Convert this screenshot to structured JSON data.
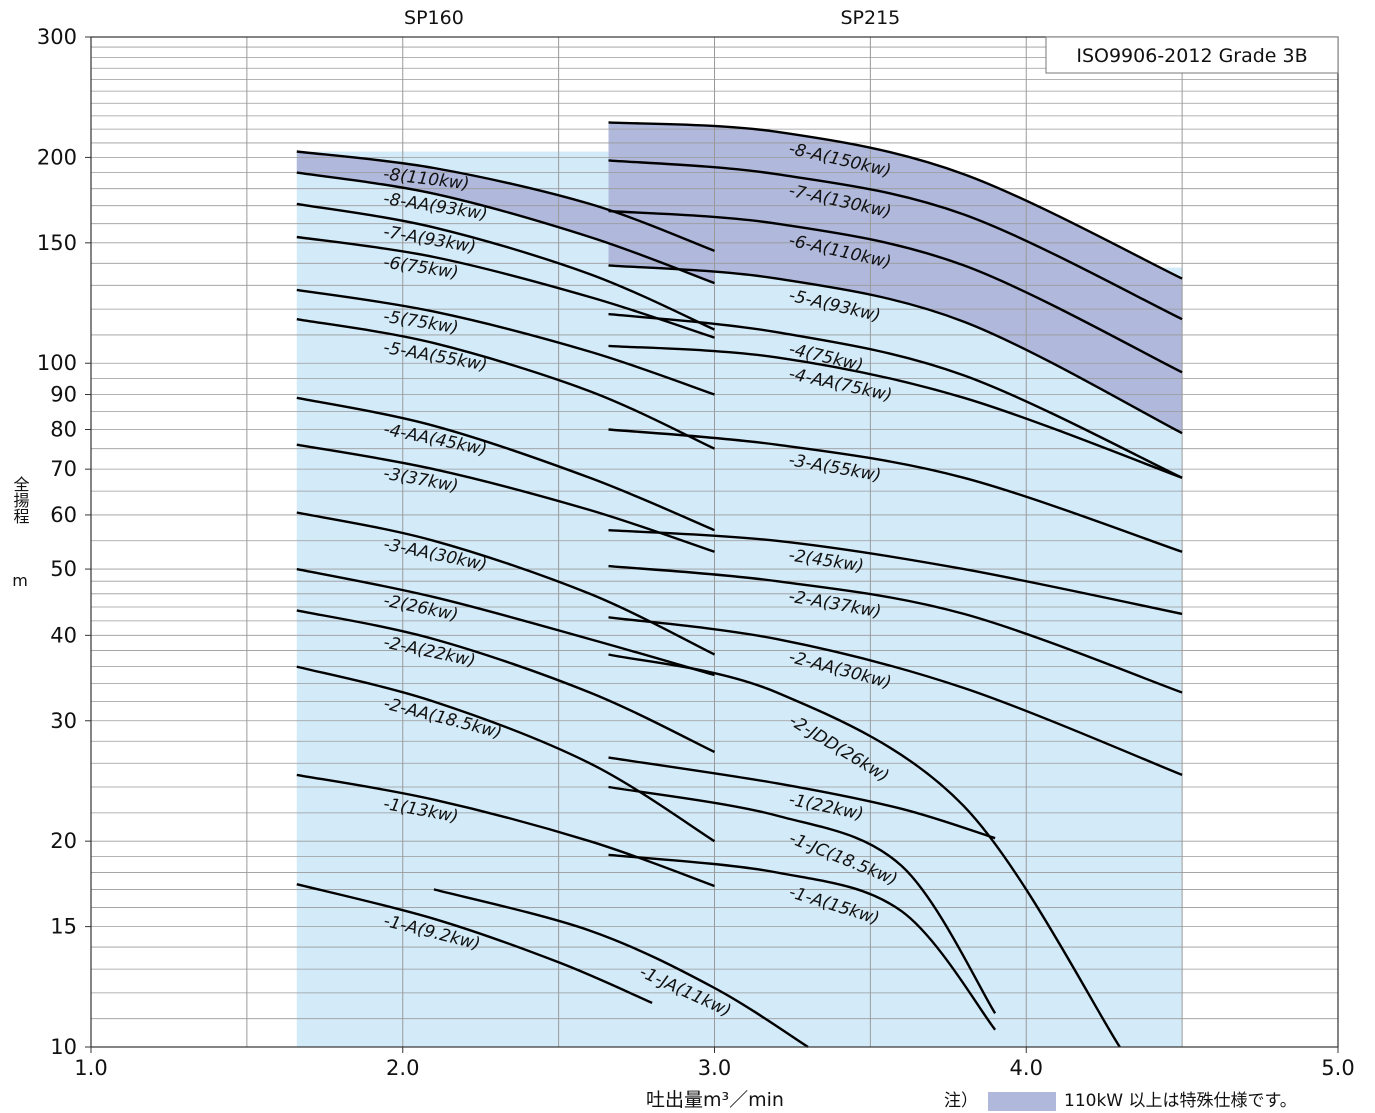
{
  "chart_data": {
    "type": "line",
    "standard_label": "ISO9906-2012 Grade 3B",
    "xlabel": "吐出量m³／min",
    "ylabel": "全揚程",
    "yunit": "m",
    "xlim": [
      1.0,
      5.0
    ],
    "ylim": [
      10,
      300
    ],
    "yscale": "log",
    "xticks": [
      "1.0",
      "2.0",
      "3.0",
      "4.0",
      "5.0"
    ],
    "yticks": [
      {
        "v": 10,
        "t": "10"
      },
      {
        "v": 15,
        "t": "15"
      },
      {
        "v": 20,
        "t": "20"
      },
      {
        "v": 30,
        "t": "30"
      },
      {
        "v": 40,
        "t": "40"
      },
      {
        "v": 50,
        "t": "50"
      },
      {
        "v": 60,
        "t": "60"
      },
      {
        "v": 70,
        "t": "70"
      },
      {
        "v": 80,
        "t": "80"
      },
      {
        "v": 90,
        "t": "90"
      },
      {
        "v": 100,
        "t": "100"
      },
      {
        "v": 150,
        "t": "150"
      },
      {
        "v": 200,
        "t": "200"
      },
      {
        "v": 300,
        "t": "300"
      }
    ],
    "groups": [
      {
        "name": "SP160",
        "xmid": 2.1
      },
      {
        "name": "SP215",
        "xmid": 3.5
      }
    ],
    "note_prefix": "注）",
    "note_text": "110kW 以上は特殊仕様です。",
    "colors": {
      "light": "#d3ebf9",
      "dark": "#b0b8db",
      "curve": "#000000",
      "grid": "#9a9a9a"
    },
    "series": [
      {
        "name": "-8(110kw)",
        "group": "SP160",
        "x": [
          1.66,
          2.1,
          2.6,
          3.0
        ],
        "y": [
          204,
          193,
          171,
          146
        ]
      },
      {
        "name": "-8-AA(93kw)",
        "group": "SP160",
        "x": [
          1.66,
          2.1,
          2.6,
          3.0
        ],
        "y": [
          190,
          177,
          153,
          131
        ]
      },
      {
        "name": "-7-A(93kw)",
        "group": "SP160",
        "x": [
          1.66,
          2.1,
          2.6,
          3.0
        ],
        "y": [
          171,
          158,
          135,
          112
        ]
      },
      {
        "name": "-6(75kw)",
        "group": "SP160",
        "x": [
          1.66,
          2.1,
          2.6,
          3.0
        ],
        "y": [
          153,
          143,
          125,
          109
        ]
      },
      {
        "name": "-5(75kw)",
        "group": "SP160",
        "x": [
          1.66,
          2.1,
          2.6,
          3.0
        ],
        "y": [
          128,
          119,
          104,
          90
        ]
      },
      {
        "name": "-5-AA(55kw)",
        "group": "SP160",
        "x": [
          1.66,
          2.1,
          2.6,
          3.0
        ],
        "y": [
          116,
          107,
          91,
          75
        ]
      },
      {
        "name": "-4-AA(45kw)",
        "group": "SP160",
        "x": [
          1.66,
          2.1,
          2.6,
          3.0
        ],
        "y": [
          89,
          81,
          68,
          57
        ]
      },
      {
        "name": "-3(37kw)",
        "group": "SP160",
        "x": [
          1.66,
          2.1,
          2.6,
          3.0
        ],
        "y": [
          76,
          70,
          61,
          53
        ]
      },
      {
        "name": "-3-AA(30kw)",
        "group": "SP160",
        "x": [
          1.66,
          2.1,
          2.6,
          3.0
        ],
        "y": [
          60.5,
          55,
          46,
          37.5
        ]
      },
      {
        "name": "-2(26kw)",
        "group": "SP160",
        "x": [
          1.66,
          2.1,
          2.6,
          3.0
        ],
        "y": [
          50,
          45.5,
          39.5,
          35
        ]
      },
      {
        "name": "-2-A(22kw)",
        "group": "SP160",
        "x": [
          1.66,
          2.1,
          2.6,
          3.0
        ],
        "y": [
          43.5,
          39.5,
          33,
          27
        ]
      },
      {
        "name": "-2-AA(18.5kw)",
        "group": "SP160",
        "x": [
          1.66,
          2.1,
          2.6,
          3.0
        ],
        "y": [
          36,
          32,
          26,
          20
        ]
      },
      {
        "name": "-1(13kw)",
        "group": "SP160",
        "x": [
          1.66,
          2.1,
          2.6,
          3.0
        ],
        "y": [
          25,
          23,
          20,
          17.2
        ]
      },
      {
        "name": "-1-A(9.2kw)",
        "group": "SP160",
        "x": [
          1.66,
          2.1,
          2.5,
          2.8
        ],
        "y": [
          17.3,
          15.4,
          13.3,
          11.6
        ]
      },
      {
        "name": "-1-JA(11kw)",
        "group": "SP160",
        "x": [
          2.1,
          2.6,
          3.0,
          3.3
        ],
        "y": [
          17.0,
          14.8,
          12.2,
          10.0
        ]
      },
      {
        "name": "-8-A(150kw)",
        "group": "SP215",
        "x": [
          2.66,
          3.2,
          3.8,
          4.5
        ],
        "y": [
          225,
          218,
          189,
          133
        ]
      },
      {
        "name": "-7-A(130kw)",
        "group": "SP215",
        "x": [
          2.66,
          3.2,
          3.8,
          4.5
        ],
        "y": [
          198,
          189,
          165,
          116
        ]
      },
      {
        "name": "-6-A(110kw)",
        "group": "SP215",
        "x": [
          2.66,
          3.2,
          3.8,
          4.5
        ],
        "y": [
          167,
          160,
          139,
          97
        ]
      },
      {
        "name": "-5-A(93kw)",
        "group": "SP215",
        "x": [
          2.66,
          3.2,
          3.8,
          4.5
        ],
        "y": [
          139,
          133,
          115,
          79
        ]
      },
      {
        "name": "-4(75kw)",
        "group": "SP215",
        "x": [
          2.66,
          3.2,
          3.8,
          4.5
        ],
        "y": [
          118,
          111,
          96,
          68
        ]
      },
      {
        "name": "-4-AA(75kw)",
        "group": "SP215",
        "x": [
          2.66,
          3.2,
          3.8,
          4.5
        ],
        "y": [
          106,
          102,
          89,
          68
        ]
      },
      {
        "name": "-3-A(55kw)",
        "group": "SP215",
        "x": [
          2.66,
          3.2,
          3.8,
          4.5
        ],
        "y": [
          80,
          76,
          68,
          53
        ]
      },
      {
        "name": "-2(45kw)",
        "group": "SP215",
        "x": [
          2.66,
          3.2,
          3.8,
          4.5
        ],
        "y": [
          57,
          55,
          50,
          43
        ]
      },
      {
        "name": "-2-A(37kw)",
        "group": "SP215",
        "x": [
          2.66,
          3.2,
          3.8,
          4.5
        ],
        "y": [
          50.5,
          48,
          43,
          33
        ]
      },
      {
        "name": "-2-AA(30kw)",
        "group": "SP215",
        "x": [
          2.66,
          3.2,
          3.8,
          4.5
        ],
        "y": [
          42.5,
          39.5,
          33.5,
          25
        ]
      },
      {
        "name": "-2-JDD(26kw)",
        "group": "SP215",
        "x": [
          2.66,
          3.2,
          3.8,
          4.3
        ],
        "y": [
          37.5,
          33,
          22.5,
          10.0
        ]
      },
      {
        "name": "-1(22kw)",
        "group": "SP215",
        "x": [
          2.66,
          3.2,
          3.6,
          3.9
        ],
        "y": [
          26.5,
          24.3,
          22.3,
          20.2
        ]
      },
      {
        "name": "-1-JC(18.5kw)",
        "group": "SP215",
        "x": [
          2.66,
          3.2,
          3.6,
          3.9
        ],
        "y": [
          24,
          21.8,
          18.4,
          11.2
        ]
      },
      {
        "name": "-1-A(15kw)",
        "group": "SP215",
        "x": [
          2.66,
          3.2,
          3.6,
          3.9
        ],
        "y": [
          19.1,
          18.0,
          15.8,
          10.6
        ]
      },
      {
        "name": "-1-JA(11kw)",
        "group": "SP160",
        "x": [
          2.1,
          2.6,
          3.0,
          3.3
        ],
        "y": [
          17.0,
          14.8,
          12.2,
          10.0
        ]
      }
    ]
  }
}
